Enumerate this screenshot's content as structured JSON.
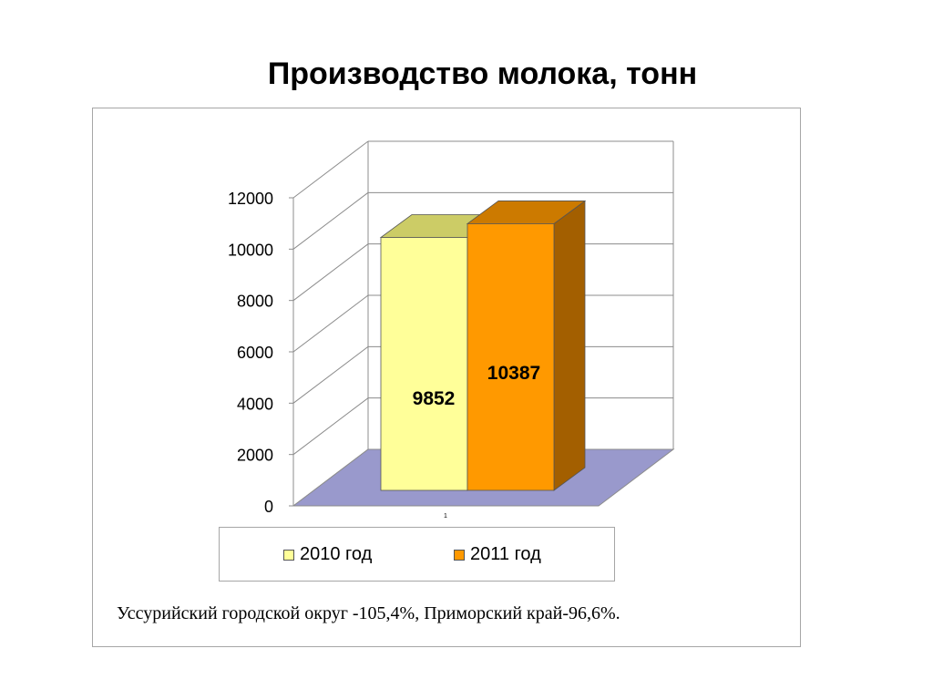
{
  "slide": {
    "title": "Производство молока, тонн",
    "footnote": "Уссурийский городской округ -105,4%, Приморский край-96,6%."
  },
  "chart_data": {
    "type": "bar",
    "style": "3d-clustered-column",
    "categories": [
      "1"
    ],
    "series": [
      {
        "name": "2010 год",
        "values": [
          9852
        ],
        "color": "#ffff99",
        "top_color": "#cccc66",
        "side_color": "#b3b34d"
      },
      {
        "name": "2011 год",
        "values": [
          10387
        ],
        "color": "#ff9900",
        "top_color": "#cc7a00",
        "side_color": "#a35f00"
      }
    ],
    "data_labels": [
      "9852",
      "10387"
    ],
    "ylim": [
      0,
      12000
    ],
    "yticks": [
      "0",
      "2000",
      "4000",
      "6000",
      "8000",
      "10000",
      "12000"
    ],
    "grid": true,
    "floor_color": "#9999cc",
    "legend_position": "bottom"
  }
}
